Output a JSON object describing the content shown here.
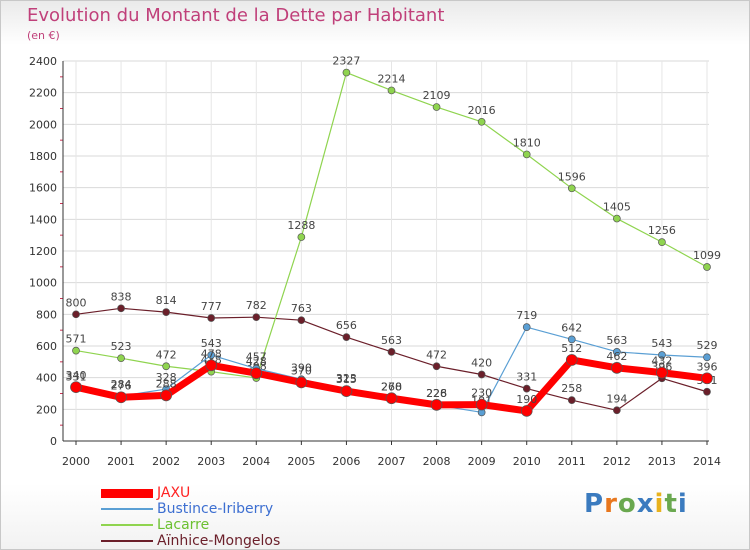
{
  "title": "Evolution du Montant de la Dette par Habitant",
  "unit": "(en €)",
  "logo": {
    "text": "Proxiti",
    "letter_colors": [
      "#3b7bbf",
      "#e8771e",
      "#6aa84f",
      "#3b7bbf",
      "#e8b21e",
      "#6aa84f",
      "#3b7bbf"
    ]
  },
  "chart_data": {
    "type": "line",
    "x": [
      "2000",
      "2001",
      "2002",
      "2003",
      "2004",
      "2005",
      "2006",
      "2007",
      "2008",
      "2009",
      "2010",
      "2011",
      "2012",
      "2013",
      "2014"
    ],
    "ylim": [
      0,
      2400
    ],
    "yticks": [
      0,
      200,
      400,
      600,
      800,
      1000,
      1200,
      1400,
      1600,
      1800,
      2000,
      2200,
      2400
    ],
    "grid": true,
    "legend": "bottom-left",
    "series": [
      {
        "name": "Aïnhice-Mongelos",
        "color": "#6b1f2a",
        "width": 1.2,
        "values": [
          800,
          838,
          814,
          777,
          782,
          763,
          656,
          563,
          472,
          420,
          331,
          258,
          194,
          396,
          311
        ],
        "labels": [
          "800",
          "838",
          "814",
          "777",
          "782",
          "763",
          "656",
          "563",
          "472",
          "420",
          "331",
          "258",
          "194",
          "396",
          "311"
        ]
      },
      {
        "name": "Lacarre",
        "color": "#8fd44f",
        "width": 1.2,
        "values": [
          571,
          523,
          472,
          438,
          398,
          1288,
          2327,
          2214,
          2109,
          2016,
          1810,
          1596,
          1405,
          1256,
          1099
        ],
        "labels": [
          "571",
          "523",
          "472",
          "438",
          "398",
          "1288",
          "2327",
          "2214",
          "2109",
          "2016",
          "1810",
          "1596",
          "1405",
          "1256",
          "1099"
        ]
      },
      {
        "name": "Bustince-Iriberry",
        "color": "#5a9fd4",
        "width": 1.2,
        "values": [
          331,
          284,
          328,
          543,
          457,
          390,
          323,
          268,
          226,
          181,
          719,
          642,
          563,
          543,
          529
        ],
        "labels": [
          "331",
          "284",
          "328",
          "543",
          "457",
          "390",
          "323",
          "268",
          "226",
          "181",
          "719",
          "642",
          "563",
          "543",
          "529"
        ]
      },
      {
        "name": "JAXU",
        "color": "#ff0000",
        "width": 7,
        "values": [
          340,
          276,
          288,
          478,
          428,
          370,
          315,
          270,
          228,
          230,
          190,
          512,
          462,
          432,
          396
        ],
        "labels": [
          "340",
          "276",
          "288",
          "478",
          "428",
          "370",
          "315",
          "270",
          "228",
          "230",
          "190",
          "512",
          "462",
          "432",
          "396"
        ]
      }
    ]
  }
}
